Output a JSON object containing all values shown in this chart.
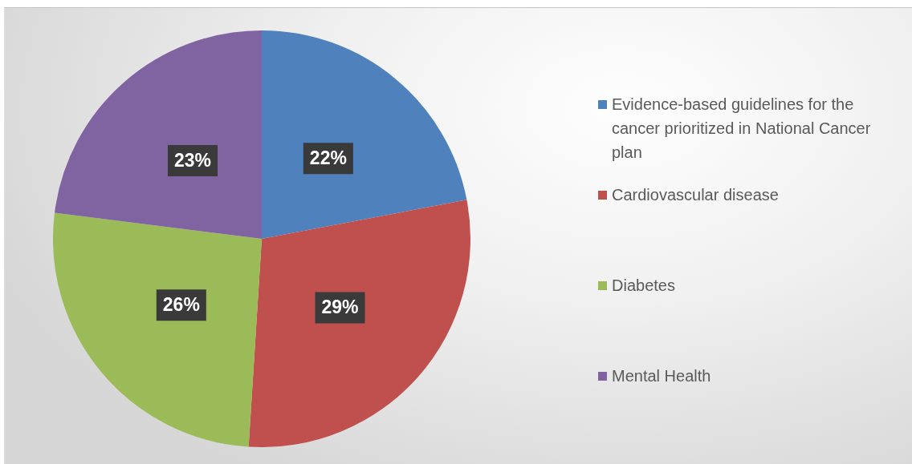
{
  "chart_data": {
    "type": "pie",
    "categories": [
      "Evidence-based guidelines for the cancer prioritized in National Cancer plan",
      "Cardiovascular disease",
      "Diabetes",
      "Mental Health"
    ],
    "values": [
      22,
      29,
      26,
      23
    ],
    "colors": [
      "#4f81bd",
      "#c0504d",
      "#9bbb59",
      "#8064a2"
    ],
    "value_labels": [
      "22%",
      "29%",
      "26%",
      "23%"
    ],
    "legend": "right"
  }
}
